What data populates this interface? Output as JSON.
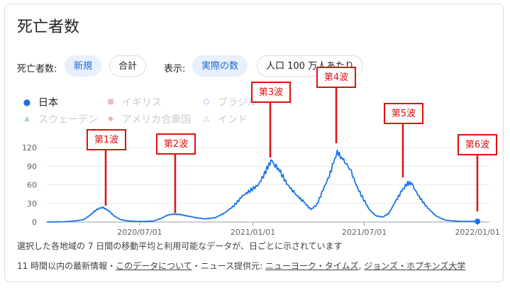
{
  "header": {
    "title": "死亡者数"
  },
  "controls": {
    "metric_label": "死亡者数:",
    "metric_options": [
      "新規",
      "合計"
    ],
    "display_label": "表示:",
    "display_options": [
      "実際の数",
      "人口 100 万人あたり"
    ]
  },
  "legend": [
    {
      "name": "日本",
      "marker": "circle-filled",
      "color": "#1a73e8",
      "active": true
    },
    {
      "name": "イギリス",
      "marker": "square",
      "color": "#f4b6c2",
      "active": false
    },
    {
      "name": "ブラジル",
      "marker": "circle-outline",
      "color": "#c58af9",
      "active": false
    },
    {
      "name": "スウェーデン",
      "marker": "triangle",
      "color": "#a8dab5",
      "active": false
    },
    {
      "name": "アメリカ合衆国",
      "marker": "diamond",
      "color": "#f6aea9",
      "active": false
    },
    {
      "name": "インド",
      "marker": "triangle-outline",
      "color": "#81c995",
      "active": false
    }
  ],
  "annotations": [
    "第1波",
    "第2波",
    "第3波",
    "第4波",
    "第5波",
    "第6波"
  ],
  "notes": {
    "description": "選択した各地域の 7 日間の移動平均と利用可能なデータが、日ごとに示されています",
    "update": "11 時間以内の最新情報・",
    "about_link": "このデータについて",
    "news_prefix": "・ニュース提供元: ",
    "source1": "ニューヨーク・タイムズ",
    "sep": ", ",
    "source2": "ジョンズ・ホプキンズ大学"
  },
  "chart_data": {
    "type": "line",
    "ylim": [
      0,
      120
    ],
    "yticks": [
      0,
      30,
      60,
      90,
      120
    ],
    "xticks": [
      "2020/07/01",
      "2021/01/01",
      "2021/07/01",
      "2022/01/01"
    ],
    "xlim": [
      "2020-02-01",
      "2022-01-01"
    ],
    "grid": true,
    "series": [
      {
        "name": "日本",
        "color": "#1a73e8",
        "points": [
          [
            "2020-02-01",
            0
          ],
          [
            "2020-03-01",
            0.5
          ],
          [
            "2020-03-20",
            2
          ],
          [
            "2020-04-01",
            4
          ],
          [
            "2020-04-10",
            10
          ],
          [
            "2020-04-18",
            17
          ],
          [
            "2020-04-24",
            21
          ],
          [
            "2020-05-01",
            24
          ],
          [
            "2020-05-05",
            22
          ],
          [
            "2020-05-12",
            18
          ],
          [
            "2020-05-20",
            10
          ],
          [
            "2020-05-31",
            4
          ],
          [
            "2020-06-10",
            2
          ],
          [
            "2020-06-25",
            1
          ],
          [
            "2020-07-10",
            1
          ],
          [
            "2020-07-25",
            2
          ],
          [
            "2020-08-05",
            6
          ],
          [
            "2020-08-15",
            11
          ],
          [
            "2020-08-25",
            13
          ],
          [
            "2020-09-05",
            12
          ],
          [
            "2020-09-15",
            10
          ],
          [
            "2020-10-01",
            7
          ],
          [
            "2020-10-15",
            5
          ],
          [
            "2020-11-01",
            7
          ],
          [
            "2020-11-15",
            14
          ],
          [
            "2020-12-01",
            26
          ],
          [
            "2020-12-15",
            42
          ],
          [
            "2020-12-31",
            53
          ],
          [
            "2021-01-10",
            60
          ],
          [
            "2021-01-20",
            78
          ],
          [
            "2021-01-27",
            93
          ],
          [
            "2021-02-01",
            98
          ],
          [
            "2021-02-06",
            92
          ],
          [
            "2021-02-15",
            80
          ],
          [
            "2021-02-25",
            62
          ],
          [
            "2021-03-10",
            46
          ],
          [
            "2021-03-25",
            32
          ],
          [
            "2021-04-05",
            20
          ],
          [
            "2021-04-15",
            28
          ],
          [
            "2021-04-25",
            52
          ],
          [
            "2021-05-05",
            74
          ],
          [
            "2021-05-12",
            95
          ],
          [
            "2021-05-18",
            113
          ],
          [
            "2021-05-25",
            104
          ],
          [
            "2021-06-01",
            96
          ],
          [
            "2021-06-10",
            80
          ],
          [
            "2021-06-20",
            55
          ],
          [
            "2021-06-30",
            36
          ],
          [
            "2021-07-10",
            19
          ],
          [
            "2021-07-20",
            10
          ],
          [
            "2021-07-31",
            8
          ],
          [
            "2021-08-10",
            14
          ],
          [
            "2021-08-20",
            32
          ],
          [
            "2021-08-31",
            50
          ],
          [
            "2021-09-08",
            61
          ],
          [
            "2021-09-13",
            64
          ],
          [
            "2021-09-18",
            58
          ],
          [
            "2021-09-28",
            41
          ],
          [
            "2021-10-10",
            25
          ],
          [
            "2021-10-25",
            10
          ],
          [
            "2021-11-10",
            3
          ],
          [
            "2021-11-25",
            1.5
          ],
          [
            "2021-12-10",
            1
          ],
          [
            "2021-12-31",
            1
          ]
        ]
      }
    ],
    "last_point": [
      "2022-01-01",
      1
    ]
  }
}
